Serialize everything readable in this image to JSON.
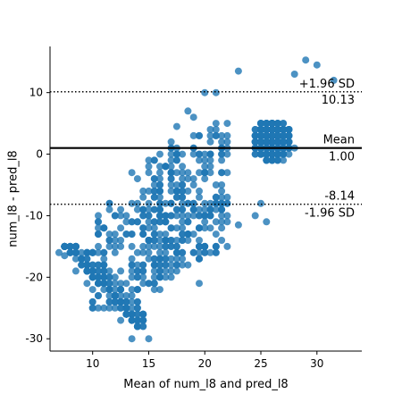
{
  "chart_data": {
    "type": "scatter",
    "title": "",
    "xlabel": "Mean of num_l8 and pred_l8",
    "ylabel": "num_l8 - pred_l8",
    "xlim": [
      6.2,
      34.0
    ],
    "ylim": [
      -32.0,
      17.5
    ],
    "xticks": [
      10,
      15,
      20,
      25,
      30
    ],
    "yticks": [
      -30,
      -20,
      -10,
      0,
      10
    ],
    "grid": false,
    "legend": "none",
    "colors": {
      "points": "#1f77b4",
      "mean_line": "#000000",
      "limit_lines": "#000000"
    },
    "lines": {
      "mean": {
        "value": 1.0,
        "style": "solid",
        "label": "Mean",
        "value_label": "1.00"
      },
      "upper": {
        "value": 10.13,
        "style": "dotted",
        "label": "+1.96 SD",
        "value_label": "10.13"
      },
      "lower": {
        "value": -8.14,
        "style": "dotted",
        "label": "-1.96 SD",
        "value_label": "-8.14"
      }
    },
    "series": [
      {
        "clusters": [
          {
            "x_range": [
              7.5,
              14.5
            ],
            "diff_range": [
              -30,
              -15
            ],
            "note": "diagonal band where differences equal minus twice the mean",
            "count": 220
          },
          {
            "x_range": [
              10,
              18
            ],
            "diff_range": [
              -26,
              -3
            ],
            "count": 180
          },
          {
            "x_range": [
              15,
              22
            ],
            "diff_range": [
              -21,
              6
            ],
            "count": 260
          },
          {
            "x_range": [
              20,
              32
            ],
            "diff_range": [
              -10,
              13.5
            ],
            "note": "dense main cloud",
            "count": 1400
          }
        ],
        "notable_points": [
          [
            7.0,
            -16
          ],
          [
            7.5,
            -16.5
          ],
          [
            8.5,
            -19
          ],
          [
            9.5,
            -21
          ],
          [
            10.5,
            -23
          ],
          [
            11.5,
            -25
          ],
          [
            12.5,
            -27
          ],
          [
            13.5,
            -30
          ],
          [
            15.0,
            -30
          ],
          [
            14.5,
            -27
          ],
          [
            13.5,
            -3
          ],
          [
            14.0,
            -4
          ],
          [
            15.0,
            -2
          ],
          [
            16.0,
            0
          ],
          [
            17.5,
            4.5
          ],
          [
            18.5,
            7
          ],
          [
            19.0,
            6
          ],
          [
            20.0,
            10
          ],
          [
            21.0,
            10
          ],
          [
            23.0,
            13.5
          ],
          [
            29.0,
            15.3
          ],
          [
            30.0,
            14.5
          ],
          [
            28.0,
            13
          ],
          [
            31.5,
            12
          ],
          [
            24.5,
            -10
          ],
          [
            25.0,
            -8
          ],
          [
            19.5,
            -21
          ],
          [
            21.0,
            -16
          ],
          [
            19.0,
            -13
          ],
          [
            23.0,
            -11.5
          ],
          [
            25.5,
            -11
          ]
        ]
      }
    ]
  }
}
